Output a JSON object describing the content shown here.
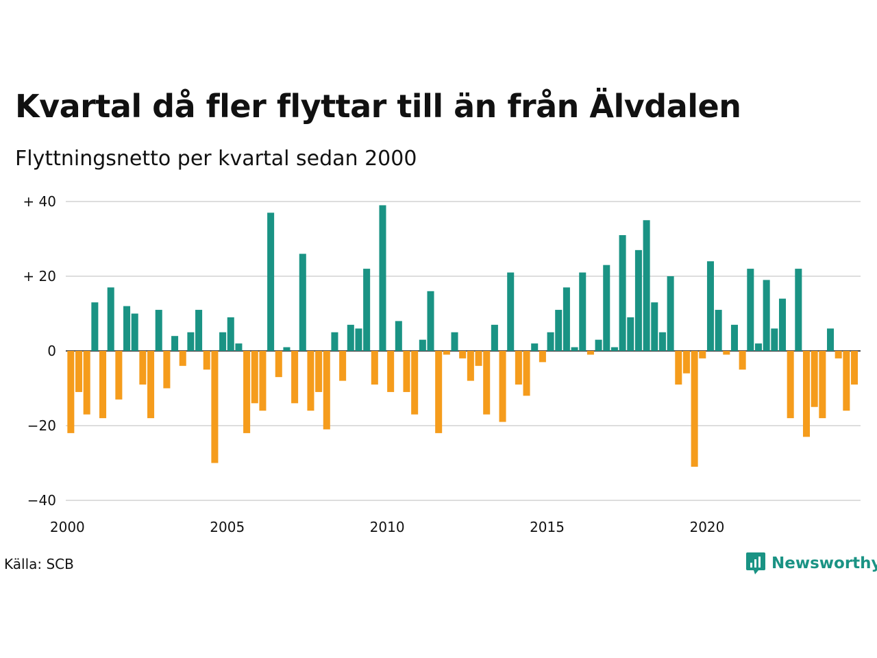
{
  "title": "Kvartal då fler flyttar till än från Älvdalen",
  "subtitle": "Flyttningsnetto per kvartal sedan 2000",
  "source": "Källa: SCB",
  "brand": "Newsworthy",
  "colors": {
    "positive": "#1a9384",
    "negative": "#f59c1c",
    "grid": "#dddddd",
    "brand": "#1a9384"
  },
  "icons": {
    "logo": "bar-chart-speech-bubble-icon"
  },
  "chart_data": {
    "type": "bar",
    "xlabel": "",
    "ylabel": "",
    "ylim": [
      -40,
      40
    ],
    "y_ticks": [
      {
        "value": 40,
        "label": "+ 40"
      },
      {
        "value": 20,
        "label": "+ 20"
      },
      {
        "value": 0,
        "label": "0"
      },
      {
        "value": -20,
        "label": "−20"
      },
      {
        "value": -40,
        "label": "−40"
      }
    ],
    "x_ticks": [
      {
        "year": 2000,
        "label": "2000"
      },
      {
        "year": 2005,
        "label": "2005"
      },
      {
        "year": 2010,
        "label": "2010"
      },
      {
        "year": 2015,
        "label": "2015"
      },
      {
        "year": 2020,
        "label": "2020"
      }
    ],
    "start_year": 2000,
    "values": [
      -22,
      -11,
      -17,
      13,
      -18,
      17,
      -13,
      12,
      10,
      -9,
      -18,
      11,
      -10,
      4,
      -4,
      5,
      11,
      -5,
      -30,
      5,
      9,
      2,
      -22,
      -14,
      -16,
      37,
      -7,
      1,
      -14,
      26,
      -16,
      -11,
      -21,
      5,
      -8,
      7,
      6,
      22,
      -9,
      39,
      -11,
      8,
      -11,
      -17,
      3,
      16,
      -22,
      -1,
      5,
      -2,
      -8,
      -4,
      -17,
      7,
      -19,
      21,
      -9,
      -12,
      2,
      -3,
      5,
      11,
      17,
      1,
      21,
      -1,
      3,
      23,
      1,
      31,
      9,
      27,
      35,
      13,
      5,
      20,
      -9,
      -6,
      -31,
      -2,
      24,
      11,
      -1,
      7,
      -5,
      22,
      2,
      19,
      6,
      14,
      -18,
      22,
      -23,
      -15,
      -18,
      6,
      -2,
      -16,
      -9
    ]
  }
}
